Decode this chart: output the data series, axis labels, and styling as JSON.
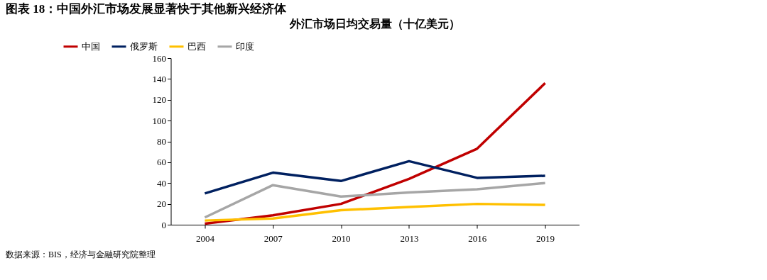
{
  "chart_data": {
    "type": "line",
    "title": "图表 18：中国外汇市场发展显著快于其他新兴经济体",
    "subtitle": "外汇市场日均交易量（十亿美元）",
    "categories": [
      "2004",
      "2007",
      "2010",
      "2013",
      "2016",
      "2019"
    ],
    "series": [
      {
        "name": "中国",
        "color": "#c00000",
        "values": [
          1,
          9,
          20,
          44,
          73,
          136
        ]
      },
      {
        "name": "俄罗斯",
        "color": "#002060",
        "values": [
          30,
          50,
          42,
          61,
          45,
          47
        ]
      },
      {
        "name": "巴西",
        "color": "#ffc000",
        "values": [
          4,
          6,
          14,
          17,
          20,
          19
        ]
      },
      {
        "name": "印度",
        "color": "#a6a6a6",
        "values": [
          7,
          38,
          27,
          31,
          34,
          40
        ]
      }
    ],
    "ylim": [
      0,
      160
    ],
    "yticks": [
      0,
      20,
      40,
      60,
      80,
      100,
      120,
      140,
      160
    ],
    "grid": false,
    "legend": "top",
    "marker": "none",
    "line_style": "solid",
    "annotations": [
      "数据来源：BIS，经济与金融研究院整理"
    ]
  }
}
